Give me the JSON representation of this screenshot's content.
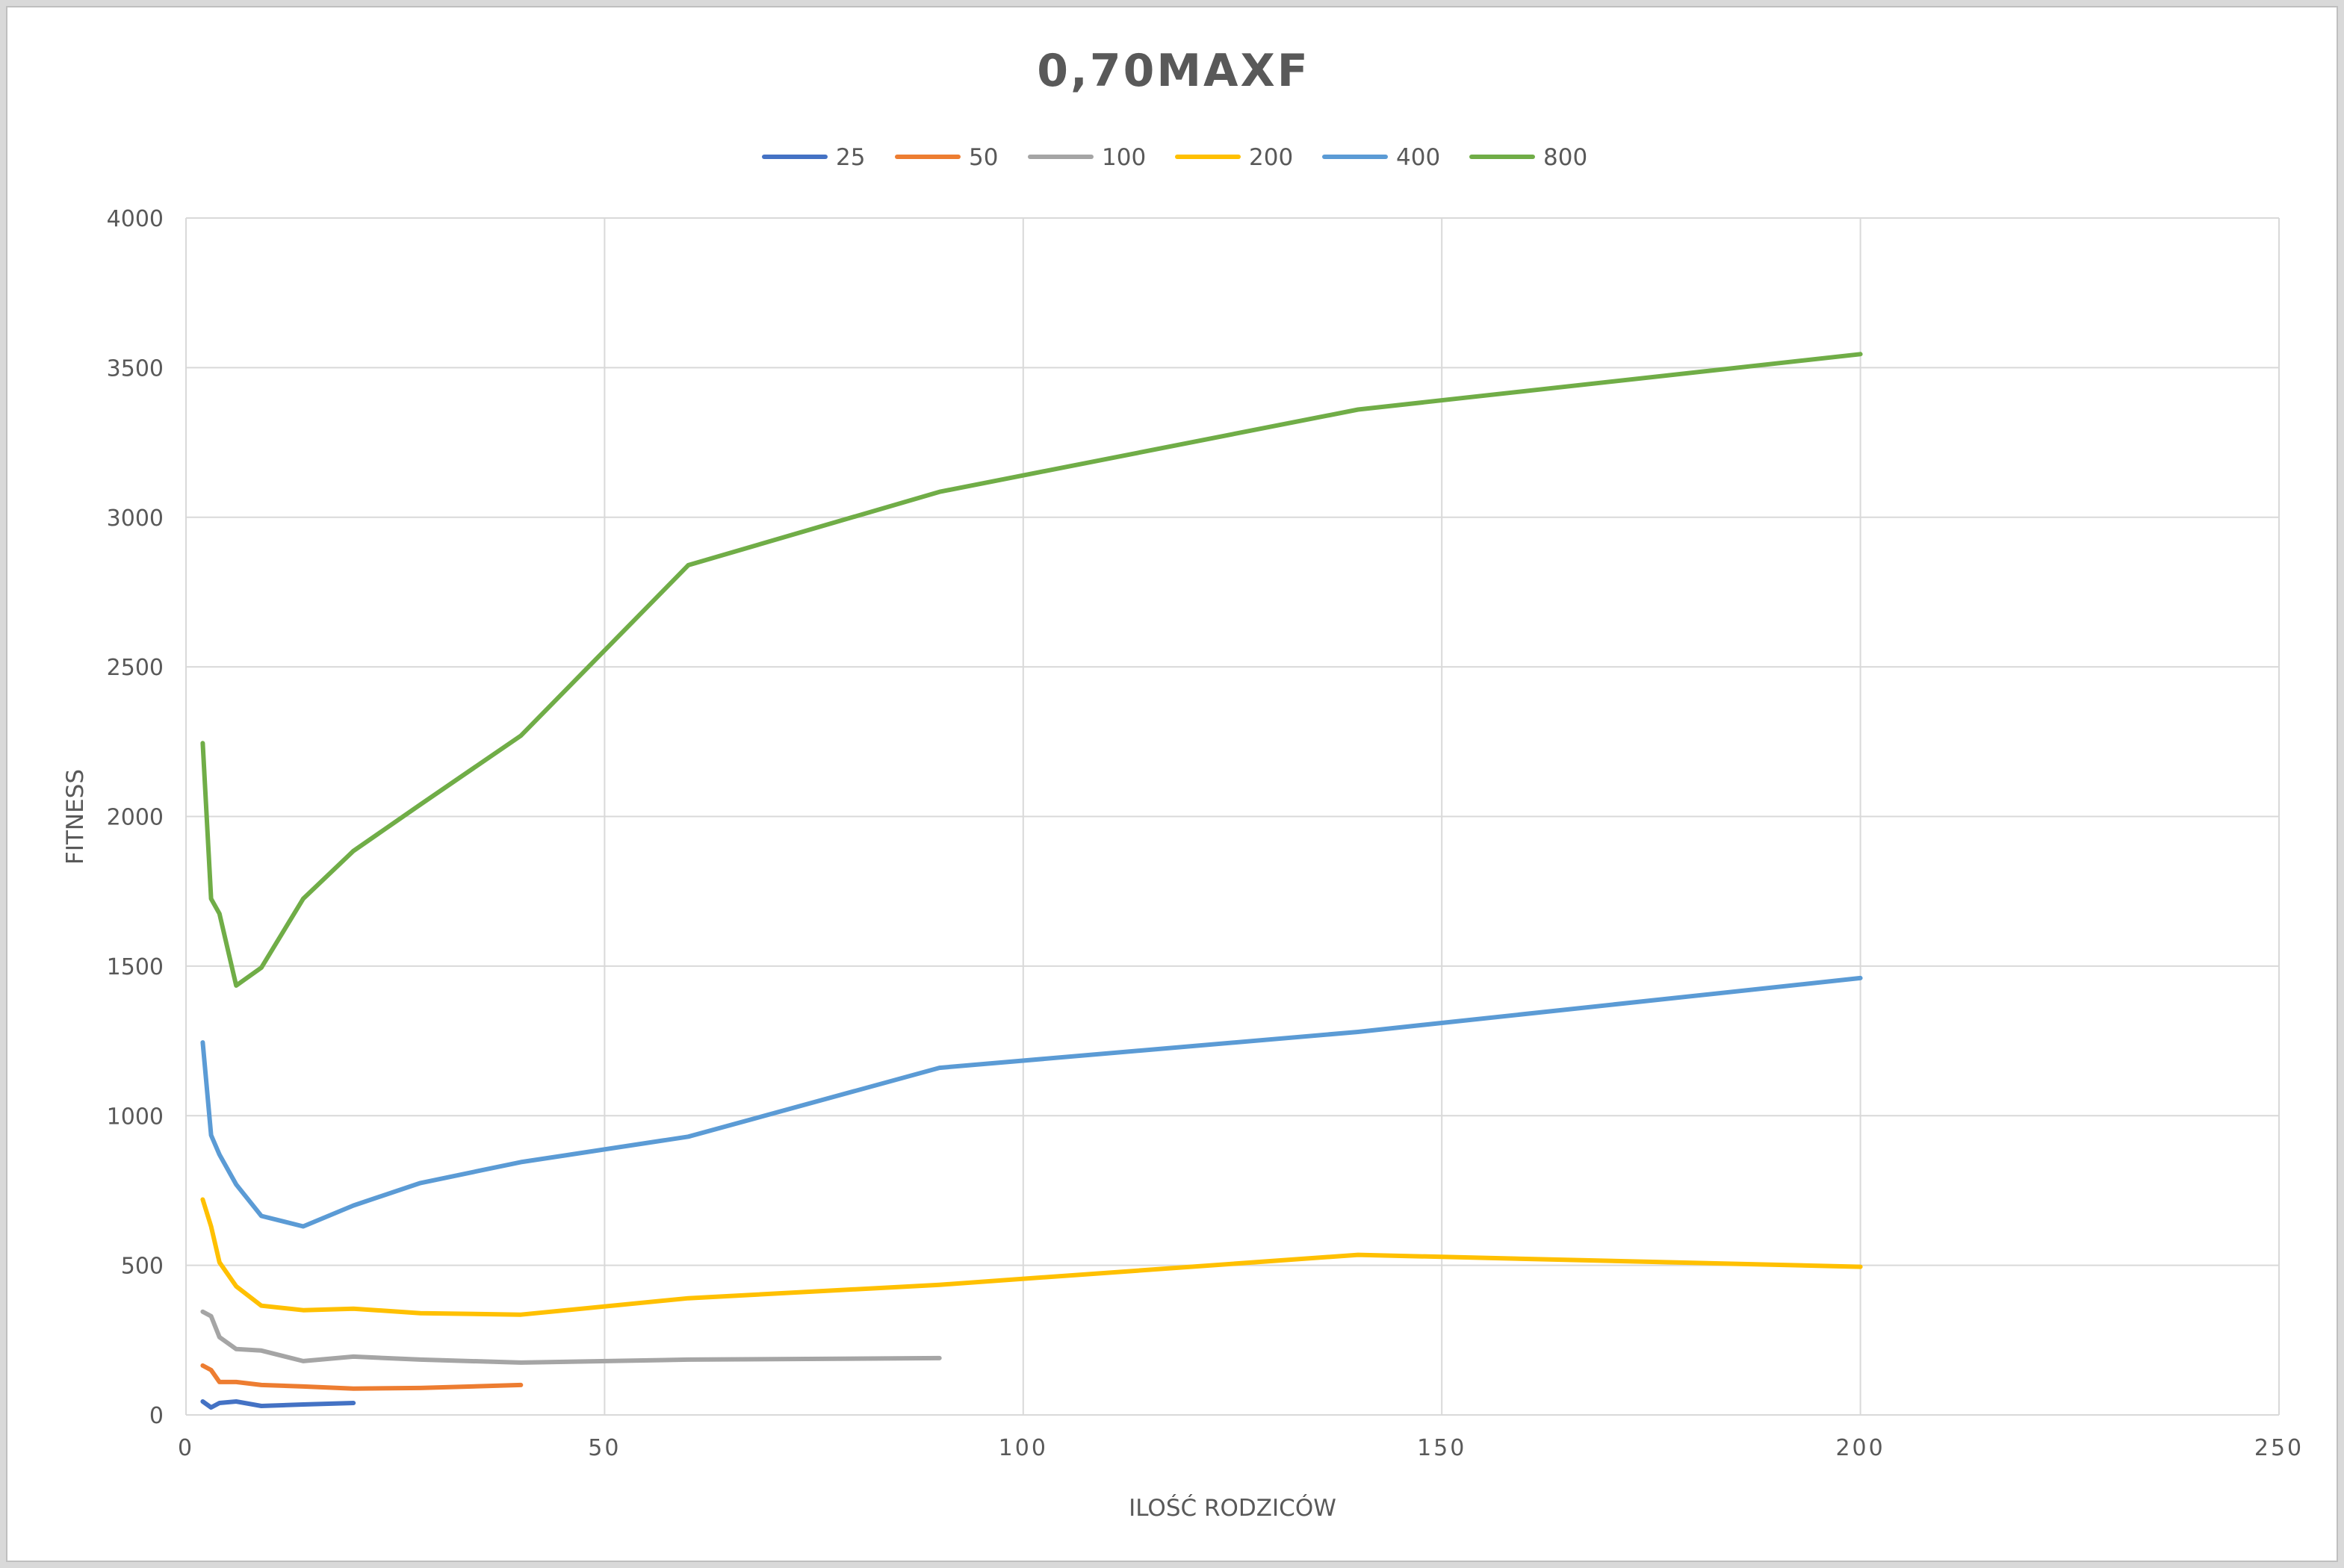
{
  "chart_data": {
    "type": "line",
    "title": "0,70MAXF",
    "xlabel": "ILOŚĆ RODZICÓW",
    "ylabel": "FITNESS",
    "xlim": [
      0,
      250
    ],
    "ylim": [
      0,
      4000
    ],
    "x_ticks": [
      0,
      50,
      100,
      150,
      200,
      250
    ],
    "y_ticks": [
      0,
      500,
      1000,
      1500,
      2000,
      2500,
      3000,
      3500,
      4000
    ],
    "grid": true,
    "legend_position": "top",
    "series": [
      {
        "name": "25",
        "color": "#4472c4",
        "x": [
          2,
          3,
          4,
          6,
          9,
          14,
          20
        ],
        "y": [
          45,
          25,
          40,
          45,
          30,
          35,
          40
        ]
      },
      {
        "name": "50",
        "color": "#ed7d31",
        "x": [
          2,
          3,
          4,
          6,
          9,
          14,
          20,
          28,
          40
        ],
        "y": [
          165,
          150,
          110,
          110,
          100,
          95,
          88,
          90,
          100
        ]
      },
      {
        "name": "100",
        "color": "#a5a5a5",
        "x": [
          2,
          3,
          4,
          6,
          9,
          14,
          20,
          28,
          40,
          60,
          90
        ],
        "y": [
          345,
          330,
          260,
          220,
          215,
          180,
          195,
          185,
          175,
          185,
          190
        ]
      },
      {
        "name": "200",
        "color": "#ffc000",
        "x": [
          2,
          3,
          4,
          6,
          9,
          14,
          20,
          28,
          40,
          60,
          90,
          140,
          200
        ],
        "y": [
          720,
          630,
          510,
          430,
          365,
          350,
          355,
          340,
          335,
          390,
          435,
          535,
          495
        ]
      },
      {
        "name": "400",
        "color": "#5b9bd5",
        "x": [
          2,
          3,
          4,
          6,
          9,
          14,
          20,
          28,
          40,
          60,
          90,
          140,
          200
        ],
        "y": [
          1245,
          935,
          870,
          770,
          665,
          630,
          700,
          775,
          845,
          930,
          1160,
          1280,
          1460
        ]
      },
      {
        "name": "800",
        "color": "#70ad47",
        "x": [
          2,
          3,
          4,
          6,
          9,
          14,
          20,
          28,
          40,
          60,
          90,
          140,
          200
        ],
        "y": [
          2245,
          1725,
          1675,
          1435,
          1495,
          1725,
          1885,
          2040,
          2270,
          2840,
          3085,
          3360,
          3545
        ]
      }
    ]
  }
}
